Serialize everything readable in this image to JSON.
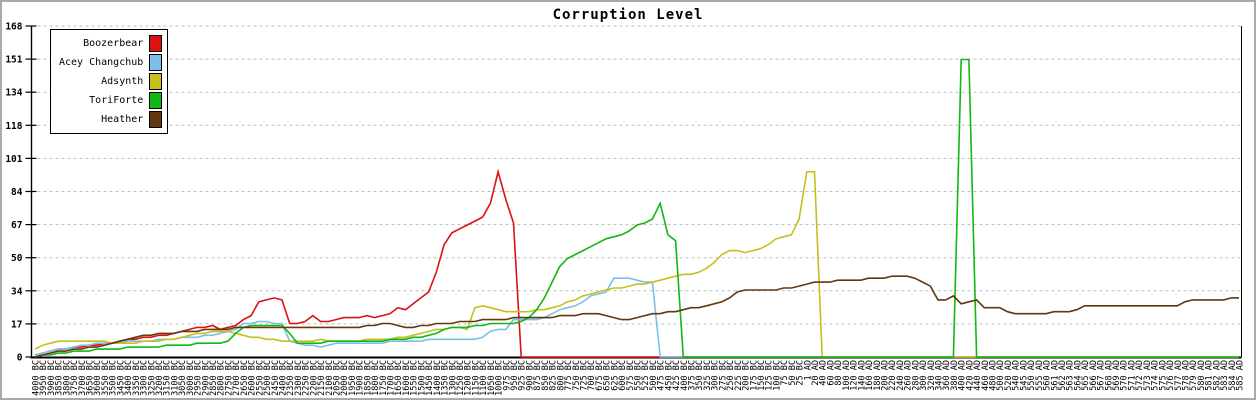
{
  "title": "Corruption Level",
  "colors": {
    "background": "#ffffff",
    "frame_border": "#a9a9a9",
    "axis": "#000000",
    "gridline": "#bdbdbd",
    "text": "#000000"
  },
  "legend": {
    "position": "top-left",
    "entries": [
      {
        "label": "Boozerbear",
        "color": "#dd1111"
      },
      {
        "label": "Acey Changchub",
        "color": "#7cc0ea"
      },
      {
        "label": "Adsynth",
        "color": "#c6c01e"
      },
      {
        "label": "ToriForte",
        "color": "#12b812"
      },
      {
        "label": "Heather",
        "color": "#63380e"
      }
    ]
  },
  "chart_data": {
    "type": "line",
    "title": "Corruption Level",
    "xlabel": "",
    "ylabel": "",
    "ylim": [
      0,
      168
    ],
    "y_ticks": [
      0,
      17,
      34,
      50,
      67,
      84,
      101,
      118,
      134,
      151,
      168
    ],
    "grid": "horizontal-dashed",
    "legend_position": "top-left",
    "x_label_rotation": -90,
    "categories": [
      "4000 BC",
      "3950 BC",
      "3900 BC",
      "3850 BC",
      "3800 BC",
      "3750 BC",
      "3700 BC",
      "3650 BC",
      "3600 BC",
      "3550 BC",
      "3500 BC",
      "3450 BC",
      "3400 BC",
      "3350 BC",
      "3300 BC",
      "3250 BC",
      "3200 BC",
      "3150 BC",
      "3100 BC",
      "3050 BC",
      "3000 BC",
      "2950 BC",
      "2900 BC",
      "2850 BC",
      "2800 BC",
      "2750 BC",
      "2700 BC",
      "2650 BC",
      "2600 BC",
      "2550 BC",
      "2500 BC",
      "2450 BC",
      "2400 BC",
      "2350 BC",
      "2300 BC",
      "2250 BC",
      "2200 BC",
      "2150 BC",
      "2100 BC",
      "2050 BC",
      "2000 BC",
      "1950 BC",
      "1900 BC",
      "1850 BC",
      "1800 BC",
      "1750 BC",
      "1700 BC",
      "1650 BC",
      "1600 BC",
      "1550 BC",
      "1500 BC",
      "1450 BC",
      "1400 BC",
      "1350 BC",
      "1300 BC",
      "1250 BC",
      "1200 BC",
      "1150 BC",
      "1100 BC",
      "1050 BC",
      "1000 BC",
      "975 BC",
      "950 BC",
      "925 BC",
      "900 BC",
      "875 BC",
      "850 BC",
      "825 BC",
      "800 BC",
      "775 BC",
      "750 BC",
      "725 BC",
      "700 BC",
      "675 BC",
      "650 BC",
      "625 BC",
      "600 BC",
      "575 BC",
      "550 BC",
      "525 BC",
      "500 BC",
      "475 BC",
      "450 BC",
      "425 BC",
      "400 BC",
      "375 BC",
      "350 BC",
      "325 BC",
      "300 BC",
      "275 BC",
      "250 BC",
      "225 BC",
      "200 BC",
      "175 BC",
      "150 BC",
      "125 BC",
      "100 BC",
      "75 BC",
      "50 BC",
      "25 BC",
      "1 AD",
      "20 AD",
      "40 AD",
      "60 AD",
      "80 AD",
      "100 AD",
      "120 AD",
      "140 AD",
      "160 AD",
      "180 AD",
      "200 AD",
      "220 AD",
      "240 AD",
      "260 AD",
      "280 AD",
      "300 AD",
      "320 AD",
      "340 AD",
      "360 AD",
      "380 AD",
      "400 AD",
      "420 AD",
      "440 AD",
      "460 AD",
      "480 AD",
      "500 AD",
      "520 AD",
      "540 AD",
      "545 AD",
      "550 AD",
      "555 AD",
      "560 AD",
      "561 AD",
      "562 AD",
      "563 AD",
      "564 AD",
      "565 AD",
      "566 AD",
      "567 AD",
      "568 AD",
      "569 AD",
      "570 AD",
      "571 AD",
      "572 AD",
      "573 AD",
      "574 AD",
      "575 AD",
      "576 AD",
      "577 AD",
      "578 AD",
      "579 AD",
      "580 AD",
      "581 AD",
      "582 AD",
      "583 AD",
      "584 AD",
      "585 AD"
    ],
    "series": [
      {
        "name": "Boozerbear",
        "color": "#dd1111",
        "values": [
          1,
          2,
          3,
          4,
          4,
          5,
          5,
          6,
          6,
          7,
          7,
          8,
          9,
          9,
          10,
          10,
          11,
          11,
          12,
          13,
          14,
          15,
          15,
          16,
          14,
          15,
          16,
          19,
          21,
          28,
          29,
          30,
          29,
          17,
          17,
          18,
          21,
          18,
          18,
          19,
          20,
          20,
          20,
          21,
          20,
          21,
          22,
          25,
          24,
          27,
          30,
          33,
          43,
          57,
          63,
          65,
          67,
          69,
          71,
          78,
          94,
          80,
          68,
          0,
          0,
          0,
          0,
          0,
          0,
          0,
          0,
          0,
          0,
          0,
          0,
          0,
          0,
          0,
          0,
          0,
          0,
          0,
          0,
          0,
          0,
          0,
          0,
          0,
          0,
          0,
          0,
          0,
          0,
          0,
          0,
          0,
          0,
          0,
          0,
          0,
          0,
          0,
          0,
          0,
          0,
          0,
          0,
          0,
          0,
          0,
          0,
          0,
          0,
          0,
          0,
          0,
          0,
          0,
          0,
          0,
          0,
          0,
          0,
          0,
          0,
          0,
          0,
          0,
          0,
          0,
          0,
          0,
          0,
          0,
          0,
          0,
          0,
          0,
          0,
          0,
          0,
          0,
          0,
          0,
          0,
          0,
          0,
          0,
          0,
          0,
          0,
          0,
          0,
          0,
          0,
          0,
          0
        ]
      },
      {
        "name": "Acey Changchub",
        "color": "#7cc0ea",
        "values": [
          1,
          2,
          3,
          4,
          4,
          5,
          6,
          6,
          7,
          7,
          7,
          7,
          8,
          8,
          8,
          8,
          9,
          9,
          9,
          10,
          10,
          10,
          11,
          11,
          12,
          13,
          14,
          17,
          17,
          18,
          18,
          17,
          17,
          8,
          7,
          6,
          6,
          5,
          6,
          7,
          7,
          7,
          7,
          7,
          7,
          7,
          8,
          8,
          8,
          8,
          8,
          9,
          9,
          9,
          9,
          9,
          9,
          9,
          10,
          13,
          14,
          14,
          19,
          19,
          19,
          19,
          20,
          22,
          24,
          25,
          26,
          28,
          31,
          32,
          33,
          40,
          40,
          40,
          39,
          38,
          38,
          0,
          0,
          0,
          0,
          0,
          0,
          0,
          0,
          0,
          0,
          0,
          0,
          0,
          0,
          0,
          0,
          0,
          0,
          0,
          0,
          0,
          0,
          0,
          0,
          0,
          0,
          0,
          0,
          0,
          0,
          0,
          0,
          0,
          0,
          0,
          0,
          0,
          0,
          0,
          0,
          0,
          0,
          0,
          0,
          0,
          0,
          0,
          0,
          0,
          0,
          0,
          0,
          0,
          0,
          0,
          0,
          0,
          0,
          0,
          0,
          0,
          0,
          0,
          0,
          0,
          0,
          0,
          0,
          0,
          0,
          0,
          0,
          0,
          0,
          0,
          0
        ]
      },
      {
        "name": "Adsynth",
        "color": "#c6c01e",
        "values": [
          4,
          6,
          7,
          8,
          8,
          8,
          8,
          8,
          8,
          8,
          7,
          7,
          7,
          7,
          8,
          8,
          8,
          9,
          9,
          10,
          11,
          12,
          12,
          13,
          13,
          13,
          12,
          11,
          10,
          10,
          9,
          9,
          8,
          8,
          8,
          8,
          8,
          9,
          8,
          8,
          8,
          8,
          8,
          9,
          9,
          9,
          9,
          10,
          10,
          11,
          12,
          13,
          14,
          14,
          15,
          15,
          14,
          25,
          26,
          25,
          24,
          23,
          23,
          23,
          23,
          24,
          24,
          25,
          26,
          28,
          29,
          31,
          32,
          33,
          34,
          35,
          35,
          36,
          37,
          37,
          38,
          39,
          40,
          41,
          42,
          42,
          43,
          45,
          48,
          52,
          54,
          54,
          53,
          54,
          55,
          57,
          60,
          61,
          62,
          70,
          94,
          94,
          0,
          0,
          0,
          0,
          0,
          0,
          0,
          0,
          0,
          0,
          0,
          0,
          0,
          0,
          0,
          0,
          0,
          0,
          0,
          0,
          0,
          0,
          0,
          0,
          0,
          0,
          0,
          0,
          0,
          0,
          0,
          0,
          0,
          0,
          0,
          0,
          0,
          0,
          0,
          0,
          0,
          0,
          0,
          0,
          0,
          0,
          0,
          0,
          0,
          0,
          0,
          0,
          0,
          0,
          0
        ]
      },
      {
        "name": "ToriForte",
        "color": "#12b812",
        "values": [
          0,
          1,
          1,
          2,
          2,
          3,
          3,
          3,
          4,
          4,
          4,
          4,
          5,
          5,
          5,
          5,
          5,
          6,
          6,
          6,
          6,
          7,
          7,
          7,
          7,
          8,
          12,
          15,
          16,
          16,
          16,
          16,
          16,
          12,
          7,
          7,
          7,
          7,
          8,
          8,
          8,
          8,
          8,
          8,
          8,
          8,
          9,
          9,
          9,
          10,
          10,
          11,
          12,
          14,
          15,
          15,
          15,
          16,
          16,
          17,
          17,
          17,
          17,
          18,
          20,
          24,
          30,
          38,
          46,
          50,
          52,
          54,
          56,
          58,
          60,
          61,
          62,
          64,
          67,
          68,
          70,
          78,
          62,
          59,
          0,
          0,
          0,
          0,
          0,
          0,
          0,
          0,
          0,
          0,
          0,
          0,
          0,
          0,
          0,
          0,
          0,
          0,
          0,
          0,
          0,
          0,
          0,
          0,
          0,
          0,
          0,
          0,
          0,
          0,
          0,
          0,
          0,
          0,
          0,
          0,
          151,
          151,
          0,
          0,
          0,
          0,
          0,
          0,
          0,
          0,
          0,
          0,
          0,
          0,
          0,
          0,
          0,
          0,
          0,
          0,
          0,
          0,
          0,
          0,
          0,
          0,
          0,
          0,
          0,
          0,
          0,
          0,
          0,
          0,
          0,
          0,
          0
        ]
      },
      {
        "name": "Heather",
        "color": "#63380e",
        "values": [
          0,
          1,
          2,
          3,
          3,
          4,
          4,
          5,
          5,
          6,
          7,
          8,
          9,
          10,
          11,
          11,
          12,
          12,
          12,
          13,
          13,
          13,
          14,
          14,
          14,
          14,
          15,
          15,
          15,
          15,
          15,
          15,
          15,
          15,
          15,
          15,
          15,
          15,
          15,
          15,
          15,
          15,
          15,
          16,
          16,
          17,
          17,
          16,
          15,
          15,
          16,
          16,
          17,
          17,
          17,
          18,
          18,
          18,
          19,
          19,
          19,
          19,
          20,
          20,
          20,
          20,
          20,
          20,
          21,
          21,
          21,
          22,
          22,
          22,
          21,
          20,
          19,
          19,
          20,
          21,
          22,
          22,
          23,
          23,
          24,
          25,
          25,
          26,
          27,
          28,
          30,
          33,
          34,
          34,
          34,
          34,
          34,
          35,
          35,
          36,
          37,
          38,
          38,
          38,
          39,
          39,
          39,
          39,
          40,
          40,
          40,
          41,
          41,
          41,
          40,
          38,
          36,
          29,
          29,
          31,
          27,
          28,
          29,
          25,
          25,
          25,
          23,
          22,
          22,
          22,
          22,
          22,
          23,
          23,
          23,
          24,
          26,
          26,
          26,
          26,
          26,
          26,
          26,
          26,
          26,
          26,
          26,
          26,
          26,
          28,
          29,
          29,
          29,
          29,
          29,
          30,
          30
        ]
      }
    ]
  }
}
